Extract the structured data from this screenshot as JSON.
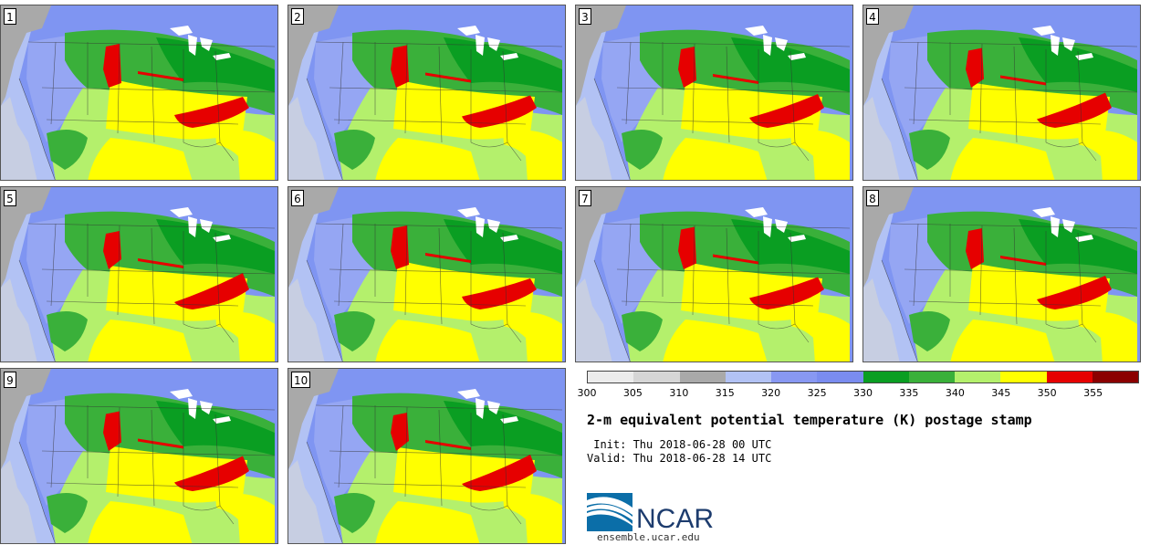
{
  "title": "2-m equivalent potential temperature (K) postage stamp",
  "init_line": " Init: Thu 2018-06-28 00 UTC",
  "valid_line": "Valid: Thu 2018-06-28 14 UTC",
  "members": [
    "1",
    "2",
    "3",
    "4",
    "5",
    "6",
    "7",
    "8",
    "9",
    "10"
  ],
  "colorbar": {
    "ticks": [
      "300",
      "305",
      "310",
      "315",
      "320",
      "325",
      "330",
      "335",
      "340",
      "345",
      "350",
      "355"
    ],
    "colors": [
      "#ececec",
      "#d6d6d6",
      "#a9a9a9",
      "#b2c2f4",
      "#8898f2",
      "#7a8cef",
      "#0a9e22",
      "#3ab03a",
      "#b4f06c",
      "#ffff00",
      "#e60000",
      "#8b0000"
    ]
  },
  "map_colors": {
    "ocean": "#b2c2f4",
    "land_gray": "#a9a9a9",
    "land_light": "#d6d6d6",
    "blue": "#7f95f2",
    "dark_green": "#0a9e22",
    "green": "#3ab03a",
    "light_green": "#b4f06c",
    "yellow": "#ffff00",
    "red": "#e60000",
    "lakes": "#ffffff"
  },
  "logo": {
    "text": "NCAR",
    "url": "ensemble.ucar.edu"
  }
}
